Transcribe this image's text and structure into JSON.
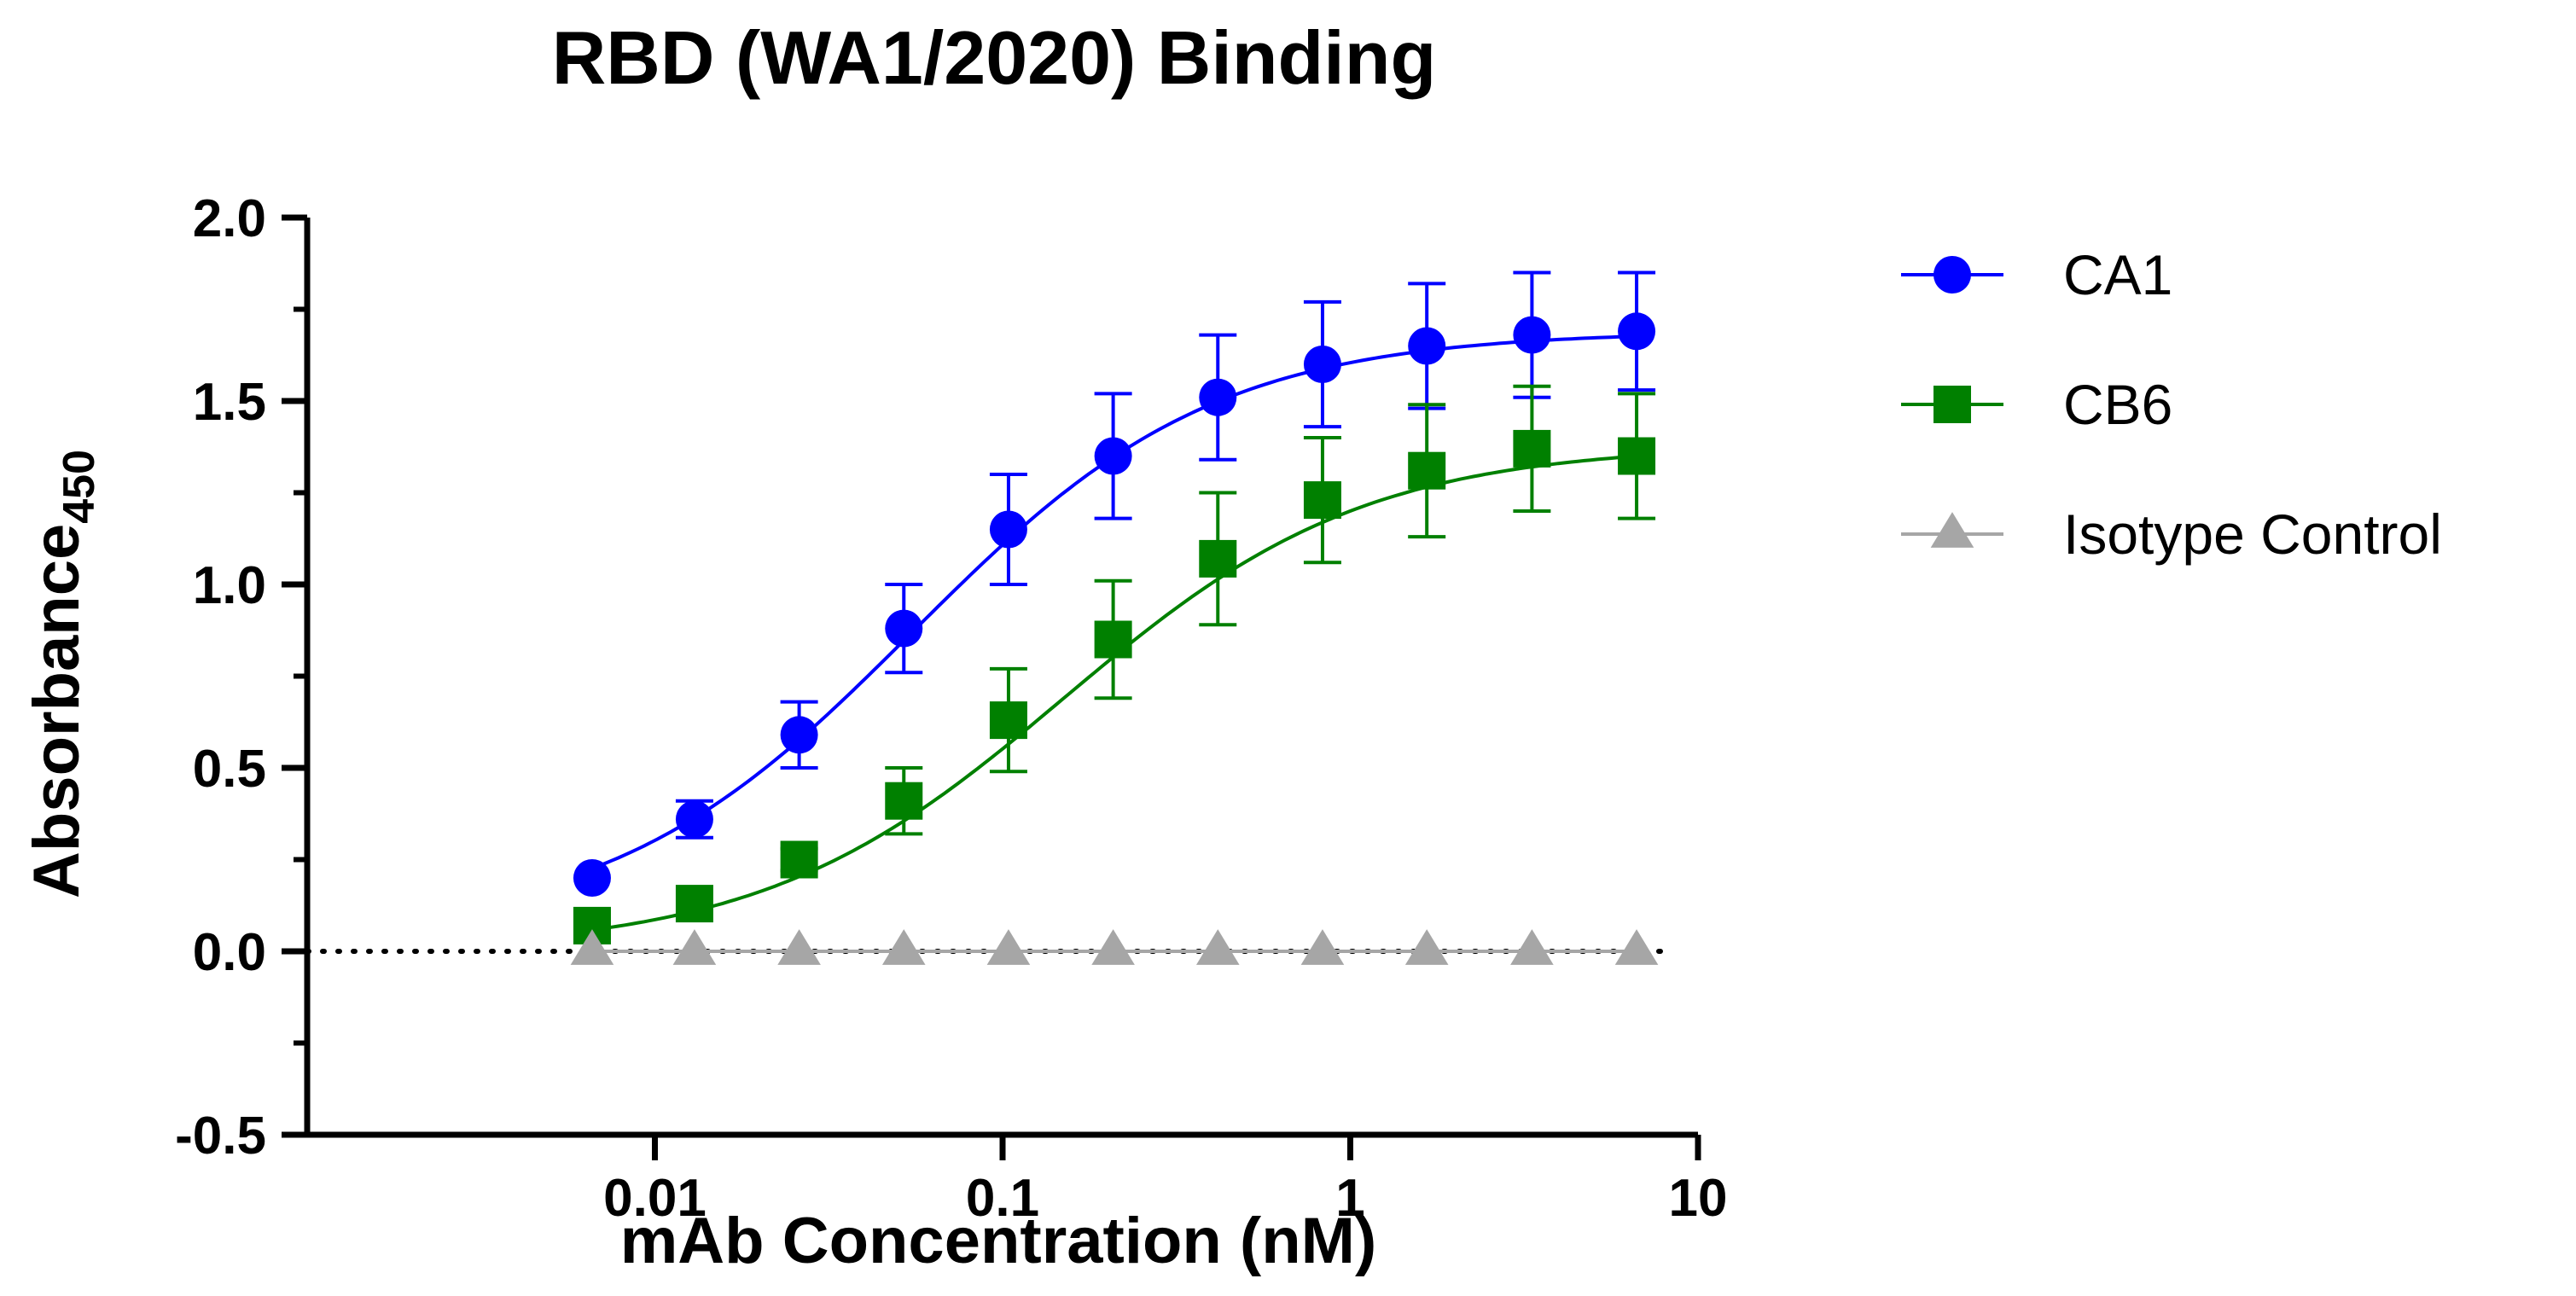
{
  "chart_data": {
    "type": "scatter",
    "title": "RBD (WA1/2020) Binding",
    "xlabel": "mAb Concentration (nM)",
    "ylabel_main": "Absorbance",
    "ylabel_sub": "450",
    "xscale": "log",
    "xlim": [
      0.001,
      10
    ],
    "ylim": [
      -0.5,
      2.0
    ],
    "x_ticks": [
      0.01,
      0.1,
      1,
      10
    ],
    "x_tick_labels": [
      "0.01",
      "0.1",
      "1",
      "10"
    ],
    "y_ticks": [
      -0.5,
      0.0,
      0.5,
      1.0,
      1.5,
      2.0
    ],
    "y_tick_labels": [
      "-0.5",
      "0.0",
      "0.5",
      "1.0",
      "1.5",
      "2.0"
    ],
    "baseline": 0.0,
    "legend_position": "right",
    "x": [
      0.0066,
      0.013,
      0.026,
      0.052,
      0.104,
      0.208,
      0.416,
      0.832,
      1.66,
      3.33,
      6.66
    ],
    "series": [
      {
        "name": "CA1",
        "color": "#0000ff",
        "marker": "circle",
        "values": [
          0.2,
          0.36,
          0.59,
          0.88,
          1.15,
          1.35,
          1.51,
          1.6,
          1.65,
          1.68,
          1.69
        ],
        "errors": [
          0.0,
          0.05,
          0.09,
          0.12,
          0.15,
          0.17,
          0.17,
          0.17,
          0.17,
          0.17,
          0.16
        ],
        "fit": {
          "bottom": 0.05,
          "top": 1.69,
          "ec50": 0.055,
          "hill": 1.0
        }
      },
      {
        "name": "CB6",
        "color": "#008000",
        "marker": "square",
        "values": [
          0.07,
          0.13,
          0.25,
          0.41,
          0.63,
          0.85,
          1.07,
          1.23,
          1.31,
          1.37,
          1.35
        ],
        "errors": [
          0.0,
          0.0,
          0.03,
          0.09,
          0.14,
          0.16,
          0.18,
          0.17,
          0.18,
          0.17,
          0.17
        ],
        "fit": {
          "bottom": 0.0,
          "top": 1.38,
          "ec50": 0.15,
          "hill": 1.0
        }
      },
      {
        "name": "Isotype Control",
        "color": "#a6a6a6",
        "marker": "triangle",
        "values": [
          0.0,
          0.0,
          0.0,
          0.0,
          0.0,
          0.0,
          0.0,
          0.0,
          0.0,
          0.0,
          0.0
        ],
        "errors": [
          0.0,
          0.0,
          0.0,
          0.0,
          0.0,
          0.0,
          0.0,
          0.0,
          0.0,
          0.0,
          0.0
        ],
        "fit": {
          "bottom": 0.0,
          "top": 0.0,
          "ec50": 1.0,
          "hill": 1.0
        }
      }
    ]
  }
}
